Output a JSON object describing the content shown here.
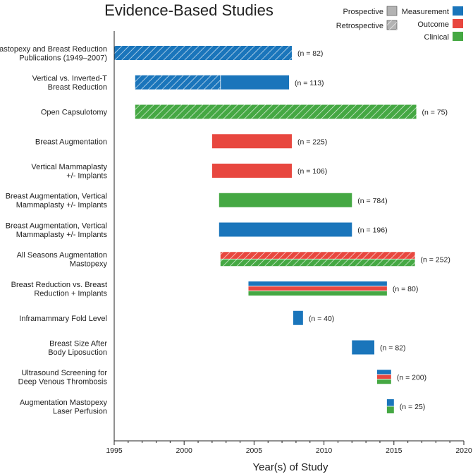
{
  "chart_data": {
    "type": "gantt",
    "title": "Evidence-Based Studies",
    "xlabel": "Year(s) of Study",
    "xlim": [
      1995,
      2020
    ],
    "xticks": [
      1995,
      2000,
      2005,
      2010,
      2015,
      2020
    ],
    "legend": {
      "design": [
        {
          "key": "prospective",
          "label": "Prospective"
        },
        {
          "key": "retrospective",
          "label": "Retrospective"
        }
      ],
      "types": [
        {
          "key": "measurement",
          "label": "Measurement",
          "color": "#1a75bb"
        },
        {
          "key": "outcome",
          "label": "Outcome",
          "color": "#e8473f"
        },
        {
          "key": "clinical",
          "label": "Clinical",
          "color": "#45a843"
        }
      ]
    },
    "studies": [
      {
        "label": [
          "Mastopexy and Breast Reduction",
          "Publications (1949–2007)"
        ],
        "n": "(n = 82)",
        "segments": [
          {
            "start": 1995,
            "end": 2007.7,
            "type": "measurement",
            "design": "retrospective"
          }
        ]
      },
      {
        "label": [
          "Vertical vs. Inverted-T",
          "Breast Reduction"
        ],
        "n": "(n = 113)",
        "segments": [
          {
            "start": 1996.5,
            "end": 2002.6,
            "type": "measurement",
            "design": "retrospective"
          },
          {
            "start": 2002.6,
            "end": 2007.5,
            "type": "measurement",
            "design": "prospective"
          }
        ]
      },
      {
        "label": [
          "Open Capsulotomy"
        ],
        "n": "(n = 75)",
        "segments": [
          {
            "start": 1996.5,
            "end": 2016.6,
            "type": "clinical",
            "design": "retrospective"
          }
        ]
      },
      {
        "label": [
          "Breast Augmentation"
        ],
        "n": "(n = 225)",
        "segments": [
          {
            "start": 2002,
            "end": 2007.7,
            "type": "outcome",
            "design": "prospective"
          }
        ]
      },
      {
        "label": [
          "Vertical Mammaplasty",
          "+/- Implants"
        ],
        "n": "(n = 106)",
        "segments": [
          {
            "start": 2002,
            "end": 2007.7,
            "type": "outcome",
            "design": "prospective"
          }
        ]
      },
      {
        "label": [
          "Breast Augmentation, Vertical",
          "Mammaplasty +/- Implants"
        ],
        "n": "(n = 784)",
        "segments": [
          {
            "start": 2002.5,
            "end": 2012,
            "type": "clinical",
            "design": "prospective"
          }
        ]
      },
      {
        "label": [
          "Breast Augmentation, Vertical",
          "Mammaplasty +/- Implants"
        ],
        "n": "(n = 196)",
        "segments": [
          {
            "start": 2002.5,
            "end": 2012,
            "type": "measurement",
            "design": "prospective"
          }
        ]
      },
      {
        "label": [
          "All Seasons Augmentation",
          "Mastopexy"
        ],
        "n": "(n = 252)",
        "segments": [
          {
            "start": 2002.6,
            "end": 2016.5,
            "stack": [
              "outcome",
              "clinical"
            ],
            "design": "retrospective"
          }
        ]
      },
      {
        "label": [
          "Breast Reduction vs. Breast",
          "Reduction + Implants"
        ],
        "n": "(n = 80)",
        "segments": [
          {
            "start": 2004.6,
            "end": 2014.5,
            "stack": [
              "measurement",
              "outcome",
              "clinical"
            ],
            "design": "prospective"
          }
        ]
      },
      {
        "label": [
          "Inframammary Fold Level"
        ],
        "n": "(n = 40)",
        "segments": [
          {
            "start": 2007.8,
            "end": 2008.5,
            "type": "measurement",
            "design": "prospective"
          }
        ]
      },
      {
        "label": [
          "Breast Size After",
          "Body Liposuction"
        ],
        "n": "(n = 82)",
        "segments": [
          {
            "start": 2012,
            "end": 2013.6,
            "type": "measurement",
            "design": "prospective"
          }
        ]
      },
      {
        "label": [
          "Ultrasound Screening for",
          "Deep Venous Thrombosis"
        ],
        "n": "(n = 200)",
        "segments": [
          {
            "start": 2013.8,
            "end": 2014.8,
            "stack": [
              "measurement",
              "outcome",
              "clinical"
            ],
            "design": "prospective"
          }
        ]
      },
      {
        "label": [
          "Augmentation Mastopexy",
          "Laser Perfusion"
        ],
        "n": "(n = 25)",
        "segments": [
          {
            "start": 2014.5,
            "end": 2015,
            "stack": [
              "measurement",
              "clinical"
            ],
            "design": "prospective"
          }
        ]
      }
    ]
  }
}
